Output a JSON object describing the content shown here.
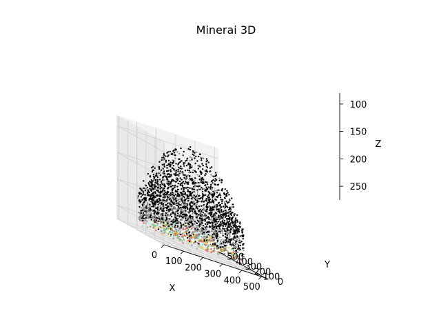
{
  "chart_data": {
    "type": "scatter",
    "title": "Minerai 3D",
    "xlabel": "X",
    "ylabel": "Y",
    "zlabel": "Z",
    "xlim": [
      0,
      520
    ],
    "ylim": [
      0,
      520
    ],
    "zlim": [
      275,
      80
    ],
    "z_inverted": true,
    "x_ticks": [
      "0",
      "100",
      "200",
      "300",
      "400",
      "500"
    ],
    "y_ticks": [
      "0",
      "100",
      "200",
      "300",
      "400",
      "500"
    ],
    "z_ticks": [
      "100",
      "150",
      "200",
      "250"
    ],
    "x_tick_values": [
      0,
      100,
      200,
      300,
      400,
      500
    ],
    "y_tick_values": [
      0,
      100,
      200,
      300,
      400,
      500
    ],
    "z_tick_values": [
      100,
      150,
      200,
      250
    ],
    "grid": true,
    "point_colors": [
      "#000000",
      "#8c8c8c",
      "#f5c518",
      "#ff5a5a",
      "#7fe0d8",
      "#6fd36f"
    ],
    "point_distribution": "dense ellipsoidal cloud; black points dominate the upper part, grey in the middle, coloured points concentrated near the bottom"
  }
}
